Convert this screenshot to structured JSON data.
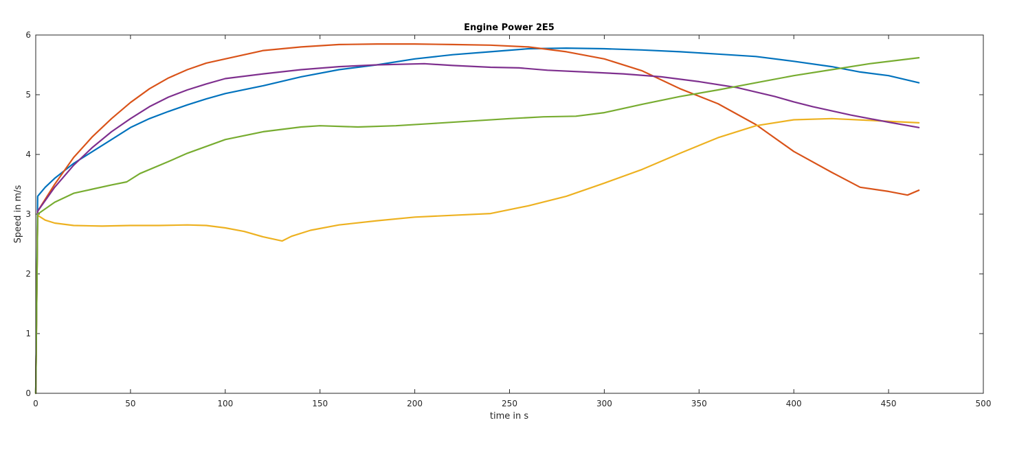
{
  "chart_data": {
    "type": "line",
    "title": "Engine Power 2E5",
    "xlabel": "time in s",
    "ylabel": "Speed in m/s",
    "xlim": [
      0,
      500
    ],
    "ylim": [
      0,
      6
    ],
    "xticks": [
      0,
      50,
      100,
      150,
      200,
      250,
      300,
      350,
      400,
      450,
      500
    ],
    "yticks": [
      0,
      1,
      2,
      3,
      4,
      5,
      6
    ],
    "grid": false,
    "legend": false,
    "series": [
      {
        "color": "#0072BD",
        "points": [
          [
            0,
            0
          ],
          [
            1,
            3.3
          ],
          [
            5,
            3.45
          ],
          [
            10,
            3.6
          ],
          [
            20,
            3.85
          ],
          [
            30,
            4.05
          ],
          [
            40,
            4.25
          ],
          [
            50,
            4.45
          ],
          [
            60,
            4.6
          ],
          [
            70,
            4.72
          ],
          [
            80,
            4.83
          ],
          [
            90,
            4.93
          ],
          [
            100,
            5.02
          ],
          [
            120,
            5.15
          ],
          [
            140,
            5.3
          ],
          [
            160,
            5.42
          ],
          [
            180,
            5.5
          ],
          [
            200,
            5.6
          ],
          [
            220,
            5.67
          ],
          [
            240,
            5.72
          ],
          [
            260,
            5.77
          ],
          [
            280,
            5.78
          ],
          [
            300,
            5.77
          ],
          [
            320,
            5.75
          ],
          [
            340,
            5.72
          ],
          [
            360,
            5.68
          ],
          [
            380,
            5.64
          ],
          [
            400,
            5.56
          ],
          [
            420,
            5.47
          ],
          [
            435,
            5.38
          ],
          [
            450,
            5.32
          ],
          [
            466,
            5.2
          ]
        ]
      },
      {
        "color": "#D95319",
        "points": [
          [
            0,
            0
          ],
          [
            1,
            3.05
          ],
          [
            10,
            3.5
          ],
          [
            20,
            3.95
          ],
          [
            30,
            4.3
          ],
          [
            40,
            4.6
          ],
          [
            50,
            4.87
          ],
          [
            60,
            5.1
          ],
          [
            70,
            5.28
          ],
          [
            80,
            5.42
          ],
          [
            90,
            5.53
          ],
          [
            100,
            5.6
          ],
          [
            120,
            5.74
          ],
          [
            140,
            5.8
          ],
          [
            160,
            5.84
          ],
          [
            180,
            5.85
          ],
          [
            200,
            5.85
          ],
          [
            220,
            5.84
          ],
          [
            240,
            5.83
          ],
          [
            260,
            5.8
          ],
          [
            280,
            5.72
          ],
          [
            300,
            5.6
          ],
          [
            320,
            5.4
          ],
          [
            340,
            5.1
          ],
          [
            360,
            4.85
          ],
          [
            380,
            4.5
          ],
          [
            400,
            4.05
          ],
          [
            420,
            3.7
          ],
          [
            435,
            3.45
          ],
          [
            450,
            3.38
          ],
          [
            460,
            3.32
          ],
          [
            466,
            3.4
          ]
        ]
      },
      {
        "color": "#EDB120",
        "points": [
          [
            0,
            0
          ],
          [
            1,
            2.98
          ],
          [
            5,
            2.9
          ],
          [
            10,
            2.85
          ],
          [
            20,
            2.81
          ],
          [
            35,
            2.8
          ],
          [
            50,
            2.81
          ],
          [
            65,
            2.81
          ],
          [
            80,
            2.82
          ],
          [
            90,
            2.81
          ],
          [
            100,
            2.77
          ],
          [
            110,
            2.71
          ],
          [
            120,
            2.62
          ],
          [
            130,
            2.55
          ],
          [
            135,
            2.63
          ],
          [
            145,
            2.73
          ],
          [
            160,
            2.82
          ],
          [
            180,
            2.89
          ],
          [
            200,
            2.95
          ],
          [
            220,
            2.98
          ],
          [
            240,
            3.01
          ],
          [
            260,
            3.14
          ],
          [
            280,
            3.3
          ],
          [
            300,
            3.52
          ],
          [
            320,
            3.75
          ],
          [
            340,
            4.02
          ],
          [
            360,
            4.28
          ],
          [
            380,
            4.48
          ],
          [
            400,
            4.58
          ],
          [
            420,
            4.6
          ],
          [
            440,
            4.57
          ],
          [
            466,
            4.53
          ]
        ]
      },
      {
        "color": "#7E2F8E",
        "points": [
          [
            0,
            0
          ],
          [
            1,
            3.05
          ],
          [
            10,
            3.45
          ],
          [
            20,
            3.82
          ],
          [
            30,
            4.12
          ],
          [
            40,
            4.38
          ],
          [
            50,
            4.6
          ],
          [
            60,
            4.8
          ],
          [
            70,
            4.96
          ],
          [
            80,
            5.08
          ],
          [
            90,
            5.18
          ],
          [
            100,
            5.27
          ],
          [
            120,
            5.35
          ],
          [
            140,
            5.42
          ],
          [
            160,
            5.47
          ],
          [
            180,
            5.5
          ],
          [
            205,
            5.52
          ],
          [
            220,
            5.49
          ],
          [
            240,
            5.46
          ],
          [
            255,
            5.45
          ],
          [
            270,
            5.41
          ],
          [
            290,
            5.38
          ],
          [
            310,
            5.35
          ],
          [
            330,
            5.3
          ],
          [
            350,
            5.22
          ],
          [
            370,
            5.12
          ],
          [
            390,
            4.97
          ],
          [
            400,
            4.88
          ],
          [
            410,
            4.8
          ],
          [
            430,
            4.66
          ],
          [
            450,
            4.54
          ],
          [
            466,
            4.45
          ]
        ]
      },
      {
        "color": "#77AC30",
        "points": [
          [
            0,
            0
          ],
          [
            1,
            3.0
          ],
          [
            10,
            3.2
          ],
          [
            20,
            3.35
          ],
          [
            30,
            3.42
          ],
          [
            40,
            3.49
          ],
          [
            48,
            3.54
          ],
          [
            55,
            3.68
          ],
          [
            70,
            3.88
          ],
          [
            80,
            4.02
          ],
          [
            100,
            4.25
          ],
          [
            120,
            4.38
          ],
          [
            140,
            4.46
          ],
          [
            150,
            4.48
          ],
          [
            170,
            4.46
          ],
          [
            190,
            4.48
          ],
          [
            210,
            4.52
          ],
          [
            230,
            4.56
          ],
          [
            250,
            4.6
          ],
          [
            268,
            4.63
          ],
          [
            285,
            4.64
          ],
          [
            300,
            4.7
          ],
          [
            320,
            4.84
          ],
          [
            340,
            4.97
          ],
          [
            360,
            5.08
          ],
          [
            380,
            5.2
          ],
          [
            400,
            5.32
          ],
          [
            420,
            5.42
          ],
          [
            440,
            5.52
          ],
          [
            466,
            5.62
          ]
        ]
      }
    ]
  }
}
